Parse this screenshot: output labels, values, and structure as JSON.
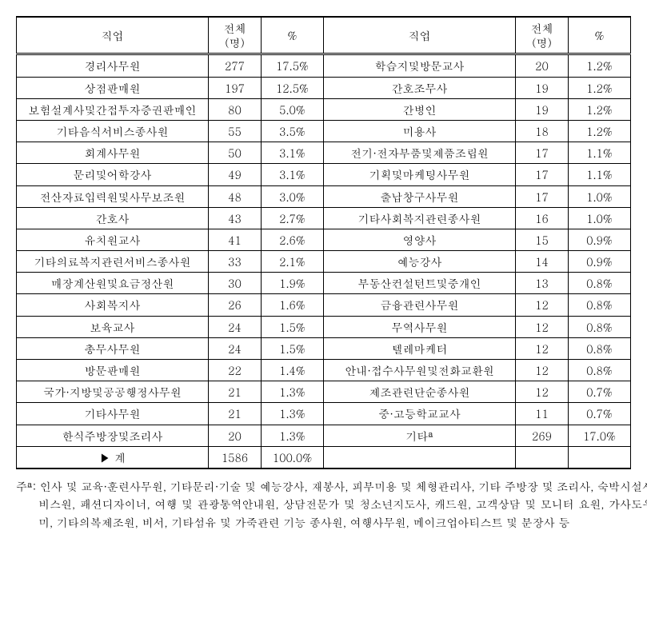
{
  "headers": {
    "job": "직업",
    "count": "전체\n(명)",
    "pct": "%"
  },
  "rows": [
    {
      "l_job": "경리사무원",
      "l_count": "277",
      "l_pct": "17.5%",
      "r_job": "학습지및방문교사",
      "r_count": "20",
      "r_pct": "1.2%"
    },
    {
      "l_job": "상점판매원",
      "l_count": "197",
      "l_pct": "12.5%",
      "r_job": "간호조무사",
      "r_count": "19",
      "r_pct": "1.2%"
    },
    {
      "l_job": "보험설계사및간접투자증권판매인",
      "l_count": "80",
      "l_pct": "5.0%",
      "r_job": "간병인",
      "r_count": "19",
      "r_pct": "1.2%"
    },
    {
      "l_job": "기타음식서비스종사원",
      "l_count": "55",
      "l_pct": "3.5%",
      "r_job": "미용사",
      "r_count": "18",
      "r_pct": "1.2%"
    },
    {
      "l_job": "회계사무원",
      "l_count": "50",
      "l_pct": "3.1%",
      "r_job": "전기·전자부품및제품조립원",
      "r_count": "17",
      "r_pct": "1.1%"
    },
    {
      "l_job": "문리및어학강사",
      "l_count": "49",
      "l_pct": "3.1%",
      "r_job": "기획및마케팅사무원",
      "r_count": "17",
      "r_pct": "1.1%"
    },
    {
      "l_job": "전산자료입력원및사무보조원",
      "l_count": "48",
      "l_pct": "3.0%",
      "r_job": "출납창구사무원",
      "r_count": "17",
      "r_pct": "1.0%"
    },
    {
      "l_job": "간호사",
      "l_count": "43",
      "l_pct": "2.7%",
      "r_job": "기타사회복지관련종사원",
      "r_count": "16",
      "r_pct": "1.0%"
    },
    {
      "l_job": "유치원교사",
      "l_count": "41",
      "l_pct": "2.6%",
      "r_job": "영양사",
      "r_count": "15",
      "r_pct": "0.9%"
    },
    {
      "l_job": "기타의료복지관련서비스종사원",
      "l_count": "33",
      "l_pct": "2.1%",
      "r_job": "예능강사",
      "r_count": "14",
      "r_pct": "0.9%"
    },
    {
      "l_job": "매장계산원및요금정산원",
      "l_count": "30",
      "l_pct": "1.9%",
      "r_job": "부동산컨설턴트및중개인",
      "r_count": "13",
      "r_pct": "0.8%"
    },
    {
      "l_job": "사회복지사",
      "l_count": "26",
      "l_pct": "1.6%",
      "r_job": "금융관련사무원",
      "r_count": "12",
      "r_pct": "0.8%"
    },
    {
      "l_job": "보육교사",
      "l_count": "24",
      "l_pct": "1.5%",
      "r_job": "무역사무원",
      "r_count": "12",
      "r_pct": "0.8%"
    },
    {
      "l_job": "총무사무원",
      "l_count": "24",
      "l_pct": "1.5%",
      "r_job": "텔레마케터",
      "r_count": "12",
      "r_pct": "0.8%"
    },
    {
      "l_job": "방문판매원",
      "l_count": "22",
      "l_pct": "1.4%",
      "r_job": "안내·접수사무원및전화교환원",
      "r_count": "12",
      "r_pct": "0.8%"
    },
    {
      "l_job": "국가·지방및공공행정사무원",
      "l_count": "21",
      "l_pct": "1.3%",
      "r_job": "제조관련단순종사원",
      "r_count": "12",
      "r_pct": "0.7%"
    },
    {
      "l_job": "기타사무원",
      "l_count": "21",
      "l_pct": "1.3%",
      "r_job": "중·고등학교교사",
      "r_count": "11",
      "r_pct": "0.7%"
    },
    {
      "l_job": "한식주방장및조리사",
      "l_count": "20",
      "l_pct": "1.3%",
      "r_job": "기타ª",
      "r_count": "269",
      "r_pct": "17.0%"
    }
  ],
  "total": {
    "label": "▶ 계",
    "count": "1586",
    "pct": "100.0%"
  },
  "footnote": {
    "label": "주ª:",
    "text": "인사 및 교육·훈련사무원, 기타문리·기술 및 예능강사, 재봉사, 피부미용 및 체형관리사, 기타 주방장 및 조리사, 숙박시설서비스원, 패션디자이너, 여행 및 관광통역안내원, 상담전문가 및 청소년지도사, 캐드원, 고객상담 및 모니터 요원, 가사도우미, 기타의복제조원, 비서, 기타섬유 및 가죽관련 기능 종사원, 여행사무원, 메이크업아티스트 및 분장사 등"
  }
}
